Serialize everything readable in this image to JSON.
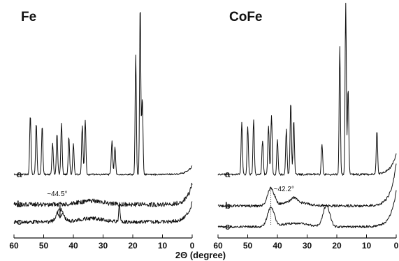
{
  "chart_data": [
    {
      "type": "line",
      "title": "Fe",
      "xlim": [
        60,
        0
      ],
      "x_ticks": [
        60,
        50,
        40,
        30,
        20,
        10,
        0
      ],
      "series": [
        {
          "name": "a",
          "peaks": [
            {
              "x": 54.5,
              "h": 0.35
            },
            {
              "x": 52.5,
              "h": 0.3
            },
            {
              "x": 50.5,
              "h": 0.28
            },
            {
              "x": 47,
              "h": 0.18
            },
            {
              "x": 45.5,
              "h": 0.24
            },
            {
              "x": 44,
              "h": 0.3
            },
            {
              "x": 41.5,
              "h": 0.22
            },
            {
              "x": 40,
              "h": 0.18
            },
            {
              "x": 37,
              "h": 0.28
            },
            {
              "x": 36,
              "h": 0.32
            },
            {
              "x": 27,
              "h": 0.2
            },
            {
              "x": 26,
              "h": 0.16
            },
            {
              "x": 19,
              "h": 0.7
            },
            {
              "x": 17.5,
              "h": 1.0
            },
            {
              "x": 16.8,
              "h": 0.45
            }
          ]
        },
        {
          "name": "b",
          "peaks": []
        },
        {
          "name": "c",
          "peaks": [
            {
              "x": 44.5,
              "h": 0.45
            },
            {
              "x": 24.5,
              "h": 0.7
            }
          ]
        }
      ],
      "annotations": [
        {
          "text": "~44.5°",
          "x": 44.5
        }
      ]
    },
    {
      "type": "line",
      "title": "CoFe",
      "xlim": [
        60,
        0
      ],
      "x_ticks": [
        60,
        50,
        40,
        30,
        20,
        10,
        0
      ],
      "series": [
        {
          "name": "a",
          "peaks": [
            {
              "x": 52,
              "h": 0.3
            },
            {
              "x": 50,
              "h": 0.28
            },
            {
              "x": 48,
              "h": 0.32
            },
            {
              "x": 45,
              "h": 0.2
            },
            {
              "x": 43,
              "h": 0.28
            },
            {
              "x": 42,
              "h": 0.35
            },
            {
              "x": 40,
              "h": 0.2
            },
            {
              "x": 37,
              "h": 0.26
            },
            {
              "x": 35.5,
              "h": 0.42
            },
            {
              "x": 34.5,
              "h": 0.32
            },
            {
              "x": 25,
              "h": 0.18
            },
            {
              "x": 19,
              "h": 0.75
            },
            {
              "x": 17,
              "h": 1.0
            },
            {
              "x": 16.2,
              "h": 0.5
            },
            {
              "x": 6.5,
              "h": 0.25
            }
          ]
        },
        {
          "name": "b",
          "peaks": [
            {
              "x": 42.2,
              "h": 0.55
            },
            {
              "x": 34.5,
              "h": 0.15
            }
          ]
        },
        {
          "name": "c",
          "peaks": [
            {
              "x": 42.2,
              "h": 0.5
            },
            {
              "x": 23.5,
              "h": 0.55
            }
          ]
        }
      ],
      "annotations": [
        {
          "text": "~42.2°",
          "x": 42.2
        }
      ]
    }
  ],
  "xlabel": "2Θ (degree)"
}
